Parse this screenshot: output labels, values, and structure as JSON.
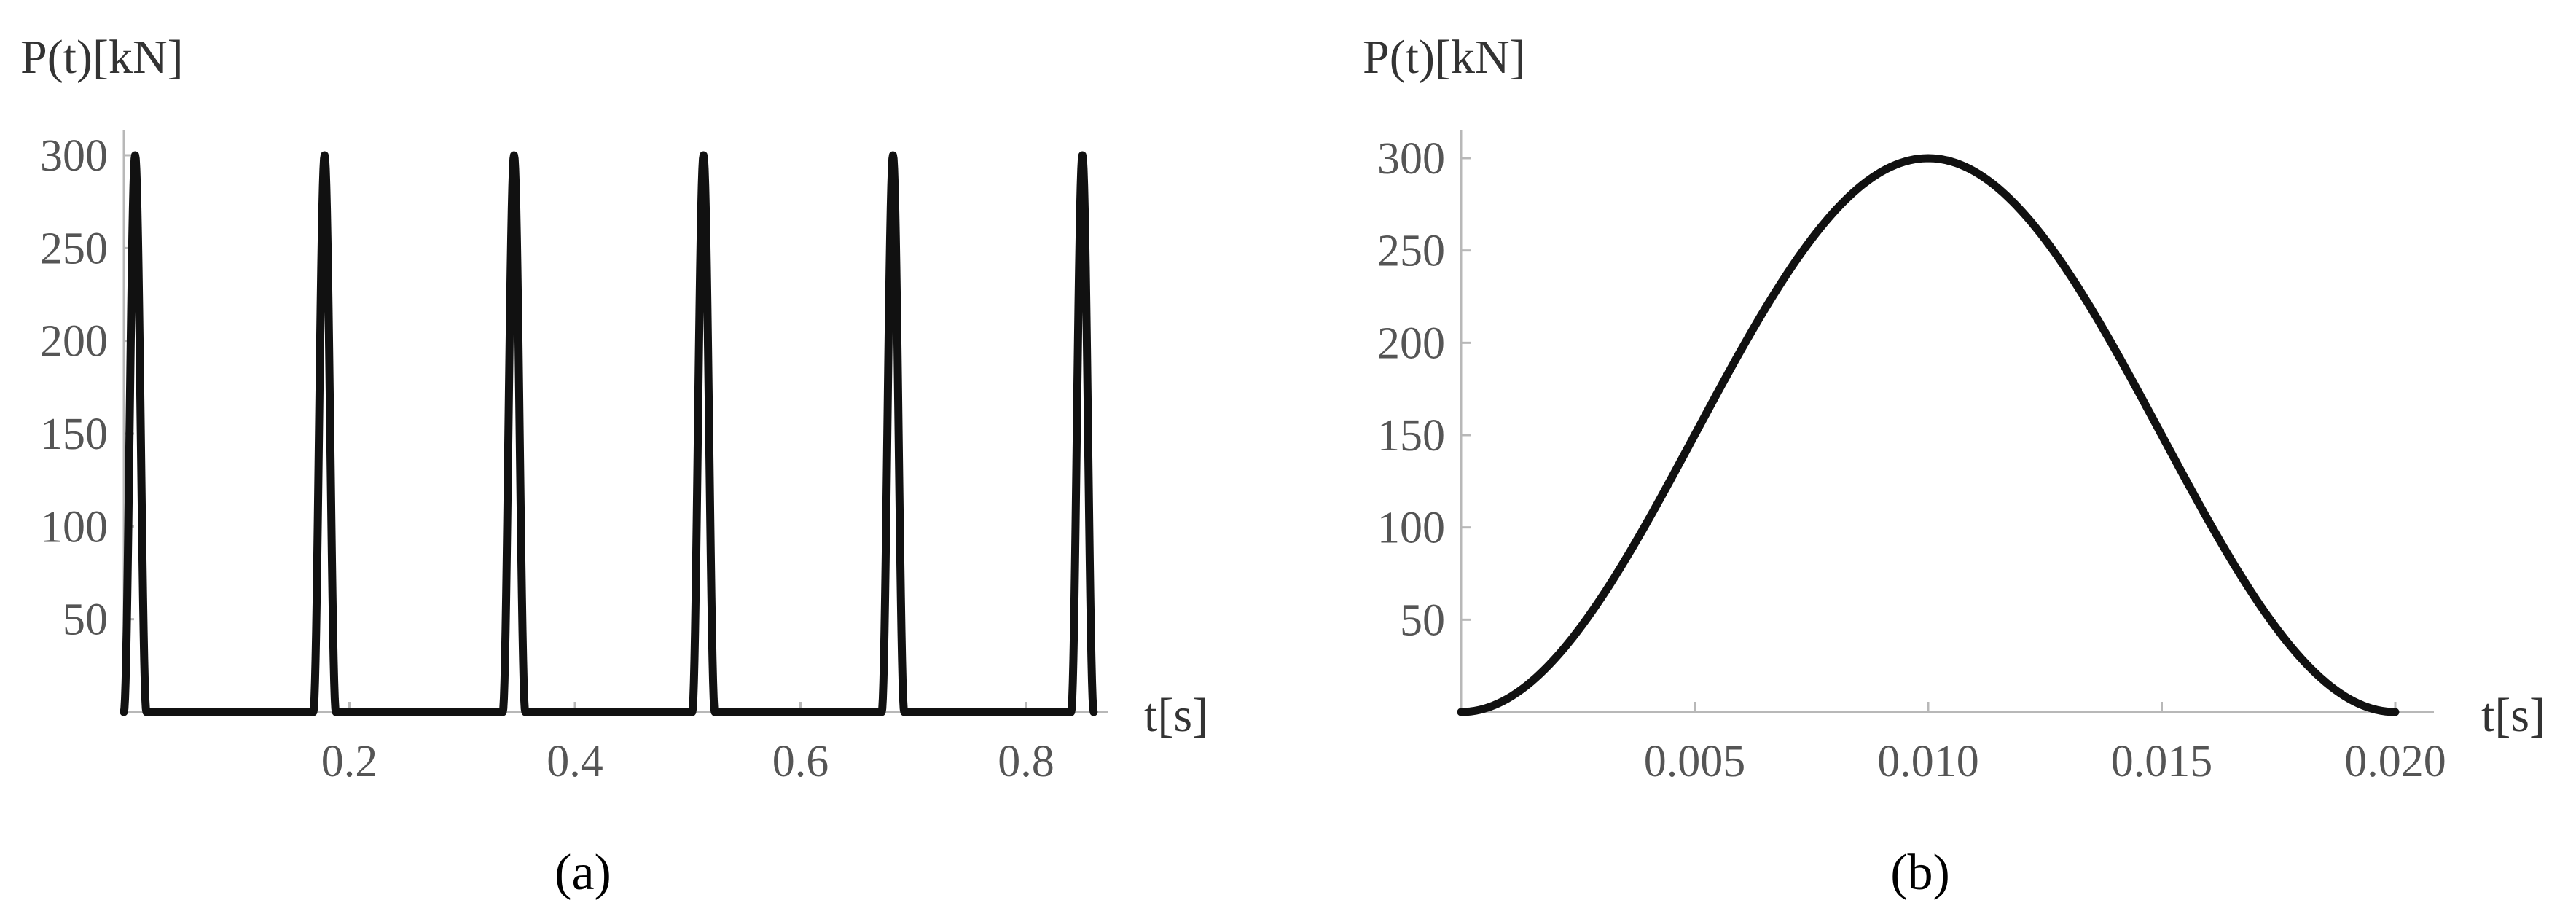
{
  "chart_data": [
    {
      "panel_label": "(a)",
      "type": "line",
      "ylabel": "P(t)[kN]",
      "xlabel": "t[s]",
      "xlim": [
        0,
        0.86
      ],
      "ylim": [
        0,
        320
      ],
      "x_ticks": [
        0.2,
        0.4,
        0.6,
        0.8
      ],
      "y_ticks": [
        50,
        100,
        150,
        200,
        250,
        300
      ],
      "pulse_period": 0.168,
      "pulse_width": 0.02,
      "pulse_peak": 300,
      "pulse_count": 6,
      "series": [
        {
          "x": [
            0,
            0.0025,
            0.005,
            0.0075,
            0.01,
            0.0125,
            0.015,
            0.0175,
            0.02,
            0.168,
            0.1705,
            0.173,
            0.1755,
            0.178,
            0.1805,
            0.183,
            0.1855,
            0.188,
            0.336,
            0.3385,
            0.341,
            0.3435,
            0.346,
            0.3485,
            0.351,
            0.3535,
            0.356,
            0.504,
            0.5065,
            0.509,
            0.5115,
            0.514,
            0.5165,
            0.519,
            0.5215,
            0.524,
            0.672,
            0.6745,
            0.677,
            0.6795,
            0.682,
            0.6845,
            0.687,
            0.6895,
            0.692,
            0.84,
            0.8425,
            0.845,
            0.8475,
            0.85,
            0.8525,
            0.855,
            0.8575,
            0.86
          ],
          "y": [
            0,
            44,
            150,
            256,
            300,
            256,
            150,
            44,
            0,
            0,
            44,
            150,
            256,
            300,
            256,
            150,
            44,
            0,
            0,
            44,
            150,
            256,
            300,
            256,
            150,
            44,
            0,
            0,
            44,
            150,
            256,
            300,
            256,
            150,
            44,
            0,
            0,
            44,
            150,
            256,
            300,
            256,
            150,
            44,
            0,
            0,
            44,
            150,
            256,
            300,
            256,
            150,
            44,
            0
          ]
        }
      ]
    },
    {
      "panel_label": "(b)",
      "type": "line",
      "ylabel": "P(t)[kN]",
      "xlabel": "t[s]",
      "xlim": [
        0,
        0.0213
      ],
      "ylim": [
        0,
        320
      ],
      "x_ticks": [
        "0.005",
        "0.010",
        "0.015",
        "0.020"
      ],
      "y_ticks": [
        50,
        100,
        150,
        200,
        250,
        300
      ],
      "series": [
        {
          "x": [
            0,
            0.001,
            0.002,
            0.003,
            0.004,
            0.005,
            0.006,
            0.007,
            0.008,
            0.009,
            0.01,
            0.011,
            0.012,
            0.013,
            0.014,
            0.015,
            0.016,
            0.017,
            0.018,
            0.019,
            0.02
          ],
          "y": [
            0,
            7,
            29,
            62,
            104,
            150,
            196,
            238,
            271,
            293,
            300,
            293,
            271,
            238,
            196,
            150,
            104,
            62,
            29,
            7,
            0
          ]
        }
      ]
    }
  ]
}
